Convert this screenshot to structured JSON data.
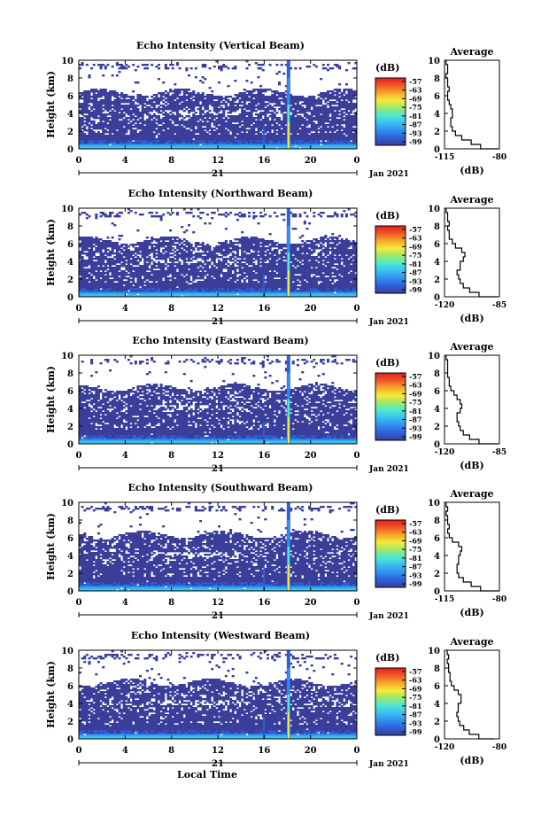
{
  "colors": {
    "scale": [
      "#3a3f9a",
      "#2f5fd8",
      "#2f8ff0",
      "#38c0f0",
      "#4fe8d0",
      "#9be86a",
      "#f5ea3a",
      "#f7a82a",
      "#f0562a",
      "#e02020"
    ],
    "background": "#ffffff"
  },
  "common": {
    "ylabel": "Height (km)",
    "xlabel": "Local Time",
    "date_label": "Jan 2021",
    "day_label": "21",
    "colorbar_unit": "(dB)",
    "avg_title": "Average",
    "avg_xlabel": "(dB)"
  },
  "chart_data": [
    {
      "type": "heatmap",
      "title": "Echo Intensity (Vertical Beam)",
      "xlabel": "",
      "ylabel": "Height (km)",
      "xlim": [
        0,
        24
      ],
      "ylim": [
        0,
        10
      ],
      "xticks": [
        "0",
        "4",
        "8",
        "12",
        "16",
        "20",
        "0"
      ],
      "yticks": [
        "0",
        "2",
        "4",
        "6",
        "8",
        "10"
      ],
      "colorbar_ticks": [
        "-57",
        "-63",
        "-69",
        "-75",
        "-81",
        "-87",
        "-93",
        "-99"
      ],
      "profile": {
        "title": "Average",
        "xlabel": "(dB)",
        "xticks": [
          "-115",
          "-80"
        ],
        "xlim": [
          -115,
          -80
        ],
        "heights": [
          0,
          0.5,
          1,
          1.5,
          2,
          2.5,
          3,
          3.5,
          4,
          4.5,
          5,
          5.5,
          6,
          6.5,
          7,
          7.5,
          8,
          8.5,
          9,
          9.5,
          10
        ],
        "values": [
          -80,
          -92,
          -98,
          -104,
          -108,
          -110,
          -111,
          -111,
          -110,
          -110,
          -111,
          -112,
          -113,
          -113,
          -112,
          -113,
          -113,
          -114,
          -113,
          -113,
          -114
        ]
      }
    },
    {
      "type": "heatmap",
      "title": "Echo Intensity (Northward Beam)",
      "xlabel": "",
      "ylabel": "Height (km)",
      "xlim": [
        0,
        24
      ],
      "ylim": [
        0,
        10
      ],
      "xticks": [
        "0",
        "4",
        "8",
        "12",
        "16",
        "20",
        "0"
      ],
      "yticks": [
        "0",
        "2",
        "4",
        "6",
        "8",
        "10"
      ],
      "colorbar_ticks": [
        "-57",
        "-63",
        "-69",
        "-75",
        "-81",
        "-87",
        "-93",
        "-99"
      ],
      "profile": {
        "title": "Average",
        "xlabel": "(dB)",
        "xticks": [
          "-120",
          "-85"
        ],
        "xlim": [
          -120,
          -85
        ],
        "heights": [
          0,
          0.5,
          1,
          1.5,
          2,
          2.5,
          3,
          3.5,
          4,
          4.5,
          5,
          5.5,
          6,
          6.5,
          7,
          7.5,
          8,
          8.5,
          9,
          9.5,
          10
        ],
        "values": [
          -86,
          -98,
          -104,
          -108,
          -110,
          -111,
          -112,
          -110,
          -110,
          -108,
          -107,
          -109,
          -113,
          -115,
          -117,
          -117,
          -118,
          -117,
          -118,
          -118,
          -119
        ]
      }
    },
    {
      "type": "heatmap",
      "title": "Echo Intensity (Eastward Beam)",
      "xlabel": "",
      "ylabel": "Height (km)",
      "xlim": [
        0,
        24
      ],
      "ylim": [
        0,
        10
      ],
      "xticks": [
        "0",
        "4",
        "8",
        "12",
        "16",
        "20",
        "0"
      ],
      "yticks": [
        "0",
        "2",
        "4",
        "6",
        "8",
        "10"
      ],
      "colorbar_ticks": [
        "-57",
        "-63",
        "-69",
        "-75",
        "-81",
        "-87",
        "-93",
        "-99"
      ],
      "profile": {
        "title": "Average",
        "xlabel": "(dB)",
        "xticks": [
          "-120",
          "-85"
        ],
        "xlim": [
          -120,
          -85
        ],
        "heights": [
          0,
          0.5,
          1,
          1.5,
          2,
          2.5,
          3,
          3.5,
          4,
          4.5,
          5,
          5.5,
          6,
          6.5,
          7,
          7.5,
          8,
          8.5,
          9,
          9.5,
          10
        ],
        "values": [
          -86,
          -98,
          -104,
          -108,
          -110,
          -111,
          -112,
          -112,
          -110,
          -109,
          -110,
          -112,
          -114,
          -116,
          -117,
          -117,
          -118,
          -118,
          -118,
          -118,
          -119
        ]
      }
    },
    {
      "type": "heatmap",
      "title": "Echo Intensity (Southward Beam)",
      "xlabel": "",
      "ylabel": "Height (km)",
      "xlim": [
        0,
        24
      ],
      "ylim": [
        0,
        10
      ],
      "xticks": [
        "0",
        "4",
        "8",
        "12",
        "16",
        "20",
        "0"
      ],
      "yticks": [
        "0",
        "2",
        "4",
        "6",
        "8",
        "10"
      ],
      "colorbar_ticks": [
        "-57",
        "-63",
        "-69",
        "-75",
        "-81",
        "-87",
        "-93",
        "-99"
      ],
      "profile": {
        "title": "Average",
        "xlabel": "(dB)",
        "xticks": [
          "-115",
          "-80"
        ],
        "xlim": [
          -115,
          -80
        ],
        "heights": [
          0,
          0.5,
          1,
          1.5,
          2,
          2.5,
          3,
          3.5,
          4,
          4.5,
          5,
          5.5,
          6,
          6.5,
          7,
          7.5,
          8,
          8.5,
          9,
          9.5,
          10
        ],
        "values": [
          -80,
          -92,
          -98,
          -103,
          -106,
          -107,
          -107,
          -106,
          -106,
          -105,
          -104,
          -106,
          -110,
          -112,
          -113,
          -112,
          -113,
          -113,
          -114,
          -113,
          -114
        ]
      }
    },
    {
      "type": "heatmap",
      "title": "Echo Intensity (Westward Beam)",
      "xlabel": "Local Time",
      "ylabel": "Height (km)",
      "xlim": [
        0,
        24
      ],
      "ylim": [
        0,
        10
      ],
      "xticks": [
        "0",
        "4",
        "8",
        "12",
        "16",
        "20",
        "0"
      ],
      "yticks": [
        "0",
        "2",
        "4",
        "6",
        "8",
        "10"
      ],
      "colorbar_ticks": [
        "-57",
        "-63",
        "-69",
        "-75",
        "-81",
        "-87",
        "-93",
        "-99"
      ],
      "profile": {
        "title": "Average",
        "xlabel": "(dB)",
        "xticks": [
          "-120",
          "-80"
        ],
        "xlim": [
          -120,
          -80
        ],
        "heights": [
          0,
          0.5,
          1,
          1.5,
          2,
          2.5,
          3,
          3.5,
          4,
          4.5,
          5,
          5.5,
          6,
          6.5,
          7,
          7.5,
          8,
          8.5,
          9,
          9.5,
          10
        ],
        "values": [
          -84,
          -95,
          -102,
          -106,
          -109,
          -110,
          -111,
          -110,
          -110,
          -108,
          -108,
          -110,
          -113,
          -115,
          -116,
          -116,
          -117,
          -117,
          -118,
          -117,
          -118
        ]
      }
    }
  ]
}
